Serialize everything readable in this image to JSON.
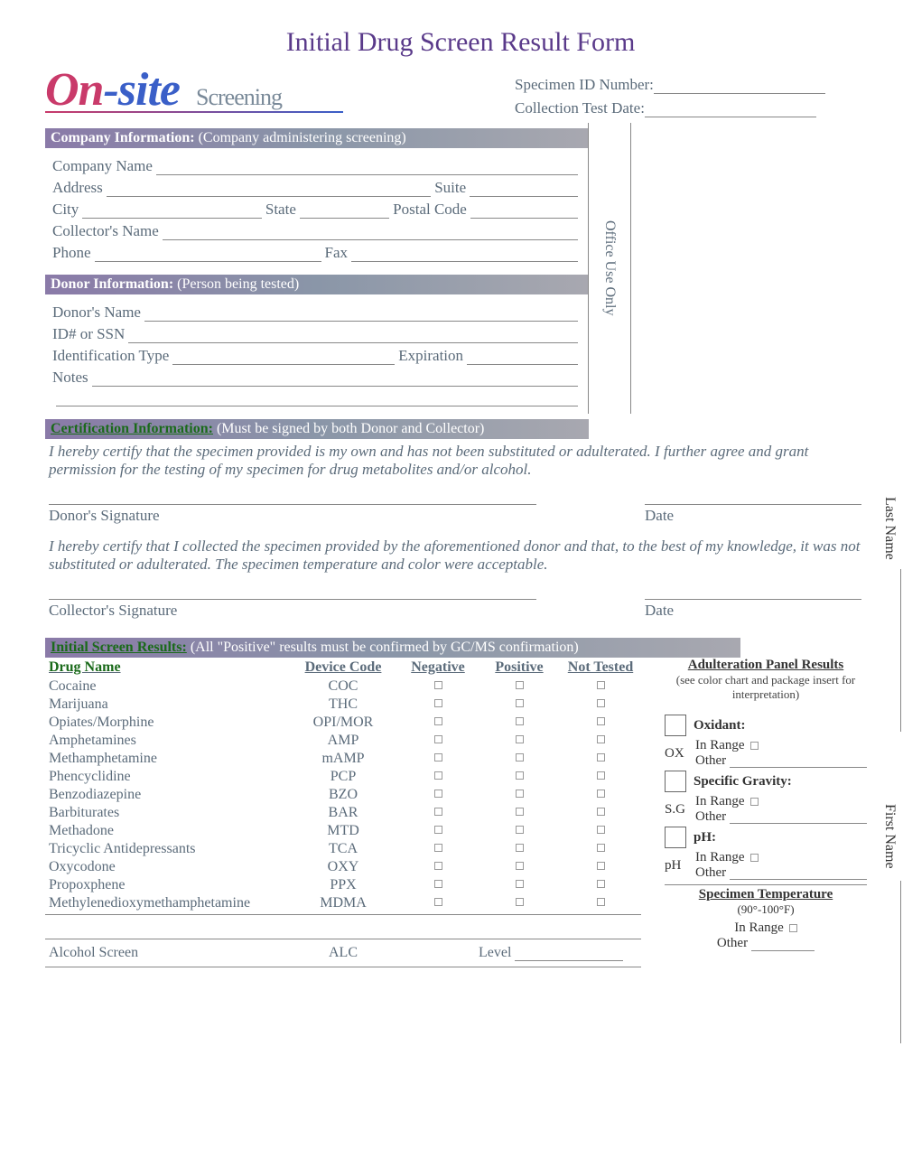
{
  "title": "Initial Drug Screen Result Form",
  "logo": {
    "brand_on": "On",
    "brand_site": "-site",
    "brand_sub": "Screening"
  },
  "specimen": {
    "id_label": "Specimen ID Number:",
    "date_label": "Collection Test Date:"
  },
  "company_section": {
    "header_bold": "Company Information:",
    "header_sub": "(Company administering screening)",
    "name": "Company Name",
    "address": "Address",
    "suite": "Suite",
    "city": "City",
    "state": "State",
    "postal": "Postal Code",
    "collector": "Collector's Name",
    "phone": "Phone",
    "fax": "Fax"
  },
  "donor_section": {
    "header_bold": "Donor Information:",
    "header_sub": "(Person being tested)",
    "name": "Donor's Name",
    "id": "ID# or SSN",
    "idtype": "Identification Type",
    "exp": "Expiration",
    "notes": "Notes"
  },
  "office_use": "Office Use Only",
  "cert_section": {
    "header_bold": "Certification Information:",
    "header_sub": "(Must be signed by both Donor and Collector)",
    "donor_text": "I hereby certify that the specimen provided is my own and has not been substituted or adulterated. I further agree and grant permission for the testing of my specimen for drug metabolites and/or alcohol.",
    "donor_sig": "Donor's Signature",
    "date": "Date",
    "collector_text": "I hereby certify that I collected the specimen provided by the aforementioned donor and that, to the best of my knowledge, it was not substituted or adulterated. The specimen temperature and color were acceptable.",
    "collector_sig": "Collector's Signature"
  },
  "results": {
    "header_bold": "Initial Screen Results:",
    "header_sub": "(All \"Positive\" results must be confirmed by GC/MS confirmation)",
    "cols": {
      "drug": "Drug Name",
      "code": "Device Code",
      "neg": "Negative",
      "pos": "Positive",
      "nt": "Not Tested"
    },
    "rows": [
      {
        "name": "Cocaine",
        "code": "COC"
      },
      {
        "name": "Marijuana",
        "code": "THC"
      },
      {
        "name": "Opiates/Morphine",
        "code": "OPI/MOR"
      },
      {
        "name": "Amphetamines",
        "code": "AMP"
      },
      {
        "name": "Methamphetamine",
        "code": "mAMP"
      },
      {
        "name": "Phencyclidine",
        "code": "PCP"
      },
      {
        "name": "Benzodiazepine",
        "code": "BZO"
      },
      {
        "name": "Barbiturates",
        "code": "BAR"
      },
      {
        "name": "Methadone",
        "code": "MTD"
      },
      {
        "name": "Tricyclic Antidepressants",
        "code": "TCA"
      },
      {
        "name": "Oxycodone",
        "code": "OXY"
      },
      {
        "name": "Propoxphene",
        "code": "PPX"
      },
      {
        "name": "Methylenedioxymethamphetamine",
        "code": "MDMA"
      }
    ],
    "alcohol": {
      "name": "Alcohol Screen",
      "code": "ALC",
      "level": "Level"
    }
  },
  "adult": {
    "header": "Adulteration Panel Results",
    "note": "(see color chart and package insert for interpretation)",
    "items": [
      {
        "code": "OX",
        "title": "Oxidant:",
        "in_range": "In Range",
        "other": "Other"
      },
      {
        "code": "S.G",
        "title": "Specific Gravity:",
        "in_range": "In Range",
        "other": "Other"
      },
      {
        "code": "pH",
        "title": "pH:",
        "in_range": "In Range",
        "other": "Other"
      }
    ],
    "temp": {
      "header": "Specimen Temperature",
      "range": "(90°-100°F)",
      "in_range": "In Range",
      "other": "Other"
    }
  },
  "side": {
    "last": "Last Name",
    "first": "First Name"
  },
  "colors": {
    "title": "#5a3a8a",
    "logo_blue": "#3a5fc8",
    "logo_red": "#c93a6a",
    "text_gray": "#5b6b7a",
    "green": "#1a6a1a",
    "bar_start": "#8a7aa8",
    "bar_end": "#a8a8b0"
  }
}
